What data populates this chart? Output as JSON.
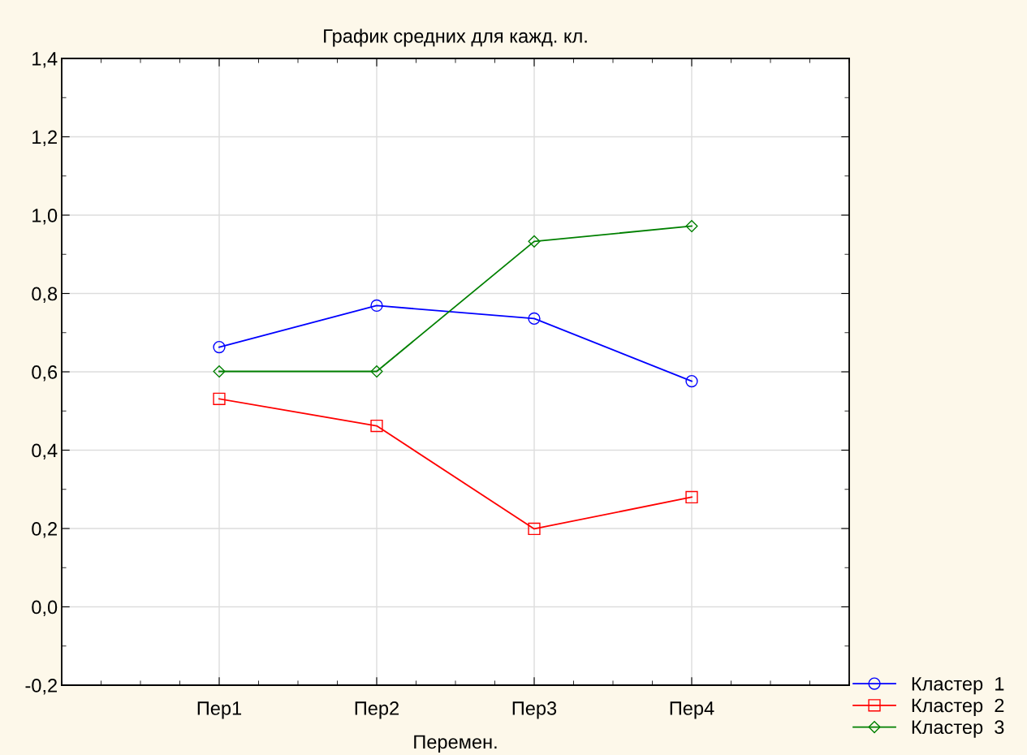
{
  "chart_data": {
    "type": "line",
    "title": "График средних для кажд. кл.",
    "xlabel": "Перемен.",
    "categories": [
      "Пер1",
      "Пер2",
      "Пер3",
      "Пер4"
    ],
    "series": [
      {
        "name": "Кластер  1",
        "color": "#0000ff",
        "marker": "circle",
        "values": [
          0.663,
          0.769,
          0.736,
          0.576
        ]
      },
      {
        "name": "Кластер  2",
        "color": "#ff0000",
        "marker": "square",
        "values": [
          0.531,
          0.462,
          0.199,
          0.28
        ]
      },
      {
        "name": "Кластер  3",
        "color": "#008000",
        "marker": "diamond",
        "values": [
          0.601,
          0.601,
          0.933,
          0.972
        ]
      }
    ],
    "ylim": [
      -0.2,
      1.4
    ],
    "yticks": [
      {
        "value": -0.2,
        "label": "-0,2"
      },
      {
        "value": 0.0,
        "label": "0,0"
      },
      {
        "value": 0.2,
        "label": "0,2"
      },
      {
        "value": 0.4,
        "label": "0,4"
      },
      {
        "value": 0.6,
        "label": "0,6"
      },
      {
        "value": 0.8,
        "label": "0,8"
      },
      {
        "value": 1.0,
        "label": "1,0"
      },
      {
        "value": 1.2,
        "label": "1,2"
      },
      {
        "value": 1.4,
        "label": "1,4"
      }
    ],
    "grid": true,
    "legend": "bottom right",
    "line_style": "solid"
  }
}
